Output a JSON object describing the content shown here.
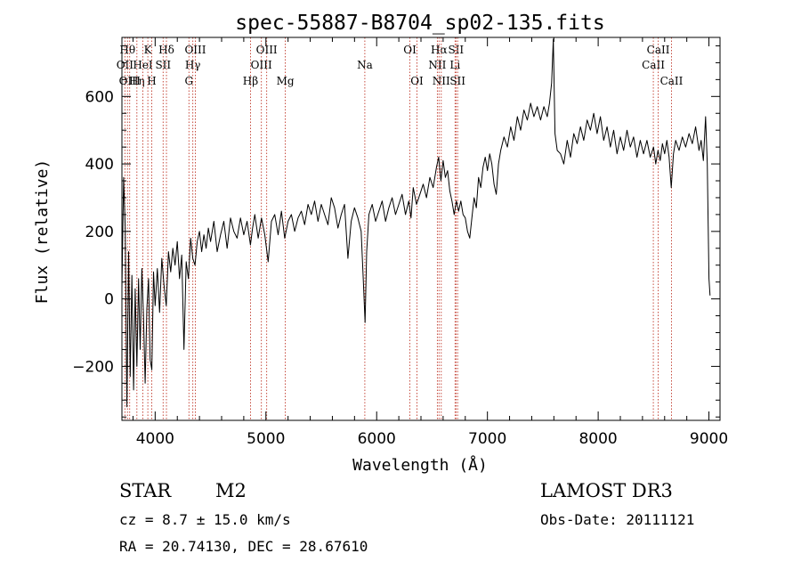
{
  "chart_data": {
    "type": "line",
    "title": "spec-55887-B8704_sp02-135.fits",
    "xlabel": "Wavelength (Å)",
    "ylabel": "Flux (relative)",
    "xlim": [
      3700,
      9100
    ],
    "ylim": [
      -360,
      775
    ],
    "x_ticks": [
      4000,
      5000,
      6000,
      7000,
      8000,
      9000
    ],
    "y_ticks": [
      -200,
      0,
      200,
      400,
      600
    ],
    "grid": false,
    "series": [
      {
        "color": "#000000",
        "points": [
          [
            3700,
            30
          ],
          [
            3715,
            360
          ],
          [
            3730,
            210
          ],
          [
            3745,
            -320
          ],
          [
            3760,
            140
          ],
          [
            3775,
            -230
          ],
          [
            3790,
            70
          ],
          [
            3805,
            -270
          ],
          [
            3820,
            30
          ],
          [
            3835,
            -200
          ],
          [
            3850,
            60
          ],
          [
            3865,
            -150
          ],
          [
            3880,
            90
          ],
          [
            3895,
            -60
          ],
          [
            3910,
            -250
          ],
          [
            3925,
            -30
          ],
          [
            3940,
            60
          ],
          [
            3955,
            -180
          ],
          [
            3970,
            -210
          ],
          [
            3985,
            80
          ],
          [
            4000,
            -20
          ],
          [
            4020,
            90
          ],
          [
            4040,
            -40
          ],
          [
            4060,
            120
          ],
          [
            4080,
            40
          ],
          [
            4100,
            -20
          ],
          [
            4120,
            140
          ],
          [
            4140,
            80
          ],
          [
            4160,
            150
          ],
          [
            4180,
            100
          ],
          [
            4200,
            170
          ],
          [
            4220,
            60
          ],
          [
            4240,
            130
          ],
          [
            4260,
            -150
          ],
          [
            4280,
            110
          ],
          [
            4300,
            60
          ],
          [
            4320,
            180
          ],
          [
            4340,
            120
          ],
          [
            4360,
            100
          ],
          [
            4380,
            170
          ],
          [
            4400,
            200
          ],
          [
            4420,
            140
          ],
          [
            4440,
            190
          ],
          [
            4460,
            150
          ],
          [
            4480,
            210
          ],
          [
            4500,
            170
          ],
          [
            4530,
            230
          ],
          [
            4560,
            140
          ],
          [
            4590,
            190
          ],
          [
            4620,
            230
          ],
          [
            4650,
            150
          ],
          [
            4680,
            240
          ],
          [
            4710,
            200
          ],
          [
            4740,
            180
          ],
          [
            4770,
            240
          ],
          [
            4800,
            190
          ],
          [
            4830,
            230
          ],
          [
            4860,
            160
          ],
          [
            4880,
            210
          ],
          [
            4900,
            250
          ],
          [
            4930,
            180
          ],
          [
            4960,
            240
          ],
          [
            4990,
            190
          ],
          [
            5020,
            110
          ],
          [
            5050,
            230
          ],
          [
            5080,
            250
          ],
          [
            5110,
            190
          ],
          [
            5140,
            260
          ],
          [
            5170,
            180
          ],
          [
            5200,
            230
          ],
          [
            5230,
            250
          ],
          [
            5260,
            200
          ],
          [
            5290,
            240
          ],
          [
            5320,
            260
          ],
          [
            5350,
            220
          ],
          [
            5380,
            280
          ],
          [
            5410,
            250
          ],
          [
            5440,
            290
          ],
          [
            5470,
            230
          ],
          [
            5500,
            280
          ],
          [
            5530,
            250
          ],
          [
            5560,
            220
          ],
          [
            5590,
            300
          ],
          [
            5620,
            270
          ],
          [
            5650,
            210
          ],
          [
            5680,
            250
          ],
          [
            5710,
            280
          ],
          [
            5740,
            120
          ],
          [
            5770,
            230
          ],
          [
            5800,
            270
          ],
          [
            5830,
            240
          ],
          [
            5860,
            200
          ],
          [
            5880,
            50
          ],
          [
            5895,
            -70
          ],
          [
            5910,
            140
          ],
          [
            5930,
            250
          ],
          [
            5960,
            280
          ],
          [
            5990,
            230
          ],
          [
            6020,
            260
          ],
          [
            6050,
            290
          ],
          [
            6080,
            230
          ],
          [
            6110,
            270
          ],
          [
            6140,
            300
          ],
          [
            6170,
            250
          ],
          [
            6200,
            280
          ],
          [
            6230,
            310
          ],
          [
            6260,
            250
          ],
          [
            6290,
            290
          ],
          [
            6310,
            240
          ],
          [
            6330,
            330
          ],
          [
            6360,
            280
          ],
          [
            6390,
            310
          ],
          [
            6420,
            340
          ],
          [
            6450,
            300
          ],
          [
            6480,
            360
          ],
          [
            6510,
            330
          ],
          [
            6540,
            390
          ],
          [
            6560,
            420
          ],
          [
            6580,
            350
          ],
          [
            6600,
            410
          ],
          [
            6620,
            360
          ],
          [
            6640,
            380
          ],
          [
            6660,
            320
          ],
          [
            6680,
            290
          ],
          [
            6700,
            250
          ],
          [
            6720,
            290
          ],
          [
            6740,
            260
          ],
          [
            6760,
            290
          ],
          [
            6780,
            250
          ],
          [
            6800,
            240
          ],
          [
            6820,
            200
          ],
          [
            6840,
            180
          ],
          [
            6860,
            240
          ],
          [
            6880,
            300
          ],
          [
            6900,
            270
          ],
          [
            6920,
            360
          ],
          [
            6940,
            330
          ],
          [
            6960,
            390
          ],
          [
            6980,
            420
          ],
          [
            7000,
            380
          ],
          [
            7020,
            430
          ],
          [
            7040,
            400
          ],
          [
            7060,
            340
          ],
          [
            7080,
            310
          ],
          [
            7100,
            400
          ],
          [
            7120,
            440
          ],
          [
            7150,
            480
          ],
          [
            7180,
            450
          ],
          [
            7210,
            510
          ],
          [
            7240,
            470
          ],
          [
            7270,
            540
          ],
          [
            7300,
            500
          ],
          [
            7330,
            560
          ],
          [
            7360,
            530
          ],
          [
            7390,
            580
          ],
          [
            7420,
            540
          ],
          [
            7450,
            570
          ],
          [
            7480,
            530
          ],
          [
            7510,
            570
          ],
          [
            7540,
            540
          ],
          [
            7560,
            580
          ],
          [
            7580,
            640
          ],
          [
            7595,
            770
          ],
          [
            7610,
            490
          ],
          [
            7630,
            440
          ],
          [
            7660,
            430
          ],
          [
            7690,
            400
          ],
          [
            7720,
            470
          ],
          [
            7750,
            420
          ],
          [
            7780,
            490
          ],
          [
            7810,
            460
          ],
          [
            7840,
            510
          ],
          [
            7870,
            470
          ],
          [
            7900,
            530
          ],
          [
            7930,
            500
          ],
          [
            7960,
            550
          ],
          [
            7990,
            490
          ],
          [
            8020,
            540
          ],
          [
            8050,
            470
          ],
          [
            8080,
            510
          ],
          [
            8110,
            450
          ],
          [
            8140,
            500
          ],
          [
            8170,
            430
          ],
          [
            8200,
            480
          ],
          [
            8230,
            440
          ],
          [
            8260,
            500
          ],
          [
            8290,
            450
          ],
          [
            8320,
            480
          ],
          [
            8350,
            420
          ],
          [
            8380,
            470
          ],
          [
            8410,
            430
          ],
          [
            8440,
            470
          ],
          [
            8470,
            420
          ],
          [
            8500,
            450
          ],
          [
            8520,
            400
          ],
          [
            8540,
            440
          ],
          [
            8560,
            410
          ],
          [
            8580,
            460
          ],
          [
            8600,
            430
          ],
          [
            8620,
            470
          ],
          [
            8640,
            420
          ],
          [
            8660,
            330
          ],
          [
            8680,
            430
          ],
          [
            8700,
            470
          ],
          [
            8730,
            440
          ],
          [
            8760,
            480
          ],
          [
            8790,
            450
          ],
          [
            8820,
            490
          ],
          [
            8850,
            460
          ],
          [
            8880,
            510
          ],
          [
            8910,
            440
          ],
          [
            8930,
            470
          ],
          [
            8950,
            410
          ],
          [
            8970,
            540
          ],
          [
            8985,
            400
          ],
          [
            9000,
            60
          ],
          [
            9010,
            10
          ]
        ]
      }
    ],
    "emission_lines": [
      {
        "x": 3727,
        "label": "OII",
        "row": 1
      },
      {
        "x": 3750,
        "label": "Hθ",
        "row": 0
      },
      {
        "x": 3770,
        "label": "OIII",
        "row": 2
      },
      {
        "x": 3835,
        "label": "Hη",
        "row": 2
      },
      {
        "x": 3889,
        "label": "HeI",
        "row": 1
      },
      {
        "x": 3934,
        "label": "K",
        "row": 0
      },
      {
        "x": 3969,
        "label": "H",
        "row": 2
      },
      {
        "x": 4072,
        "label": "SII",
        "row": 1
      },
      {
        "x": 4102,
        "label": "Hδ",
        "row": 0
      },
      {
        "x": 4305,
        "label": "G",
        "row": 2
      },
      {
        "x": 4340,
        "label": "Hγ",
        "row": 1
      },
      {
        "x": 4363,
        "label": "OIII",
        "row": 0
      },
      {
        "x": 4861,
        "label": "Hβ",
        "row": 2
      },
      {
        "x": 4959,
        "label": "OIII",
        "row": 1
      },
      {
        "x": 5007,
        "label": "OIII",
        "row": 0
      },
      {
        "x": 5175,
        "label": "Mg",
        "row": 2
      },
      {
        "x": 5893,
        "label": "Na",
        "row": 1
      },
      {
        "x": 6300,
        "label": "OI",
        "row": 0
      },
      {
        "x": 6364,
        "label": "OI",
        "row": 2
      },
      {
        "x": 6548,
        "label": "NII",
        "row": 1
      },
      {
        "x": 6563,
        "label": "Hα",
        "row": 0
      },
      {
        "x": 6583,
        "label": "NII",
        "row": 2
      },
      {
        "x": 6708,
        "label": "Li",
        "row": 1
      },
      {
        "x": 6716,
        "label": "SII",
        "row": 0
      },
      {
        "x": 6731,
        "label": "SII",
        "row": 2
      },
      {
        "x": 8498,
        "label": "CaII",
        "row": 1
      },
      {
        "x": 8542,
        "label": "CaII",
        "row": 0
      },
      {
        "x": 8662,
        "label": "CaII",
        "row": 2
      }
    ]
  },
  "info": {
    "class": "STAR",
    "subclass": "M2",
    "survey": "LAMOST DR3",
    "cz": "cz = 8.7 ± 15.0 km/s",
    "obs_date": "Obs-Date: 20111121",
    "radec": "RA =  20.74130, DEC =  28.67610"
  },
  "colors": {
    "line_marker": "#c0392b",
    "spectrum": "#000000"
  }
}
